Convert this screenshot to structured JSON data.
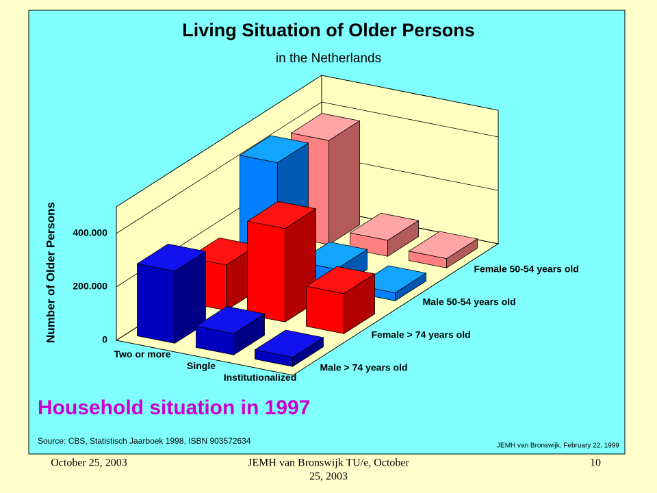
{
  "chart_data": {
    "type": "bar3d",
    "title": "Living Situation of Older Persons",
    "subtitle": "in the Netherlands",
    "y_label": "Number of Older Persons",
    "categories": [
      "Two or more",
      "Single",
      "Institutionalized"
    ],
    "series": [
      {
        "name": "Male > 74 years old",
        "color": "#0000c0",
        "values": [
          270000,
          80000,
          35000
        ]
      },
      {
        "name": "Female > 74 years old",
        "color": "#ff0000",
        "values": [
          170000,
          350000,
          150000
        ]
      },
      {
        "name": "Male 50-54 years old",
        "color": "#0080ff",
        "values": [
          430000,
          75000,
          30000
        ]
      },
      {
        "name": "Female 50-54 years old",
        "color": "#ff8080",
        "values": [
          390000,
          60000,
          35000
        ]
      }
    ],
    "ylim": [
      0,
      500000
    ],
    "yticks": [
      0,
      {
        "value": 200000,
        "label": "200.000"
      },
      {
        "value": 400000,
        "label": "400.000"
      }
    ],
    "grid": true
  },
  "slide": {
    "caption": "Household situation in 1997",
    "source": "Source: CBS, Statistisch Jaarboek 1998, ISBN 903572634",
    "credit": "JEMH van Bronswijk, February 22, 1999"
  },
  "footer": {
    "date": "October 25, 2003",
    "center": [
      "JEMH van Bronswijk TU/e, October",
      "25, 2003"
    ],
    "page": "10"
  }
}
